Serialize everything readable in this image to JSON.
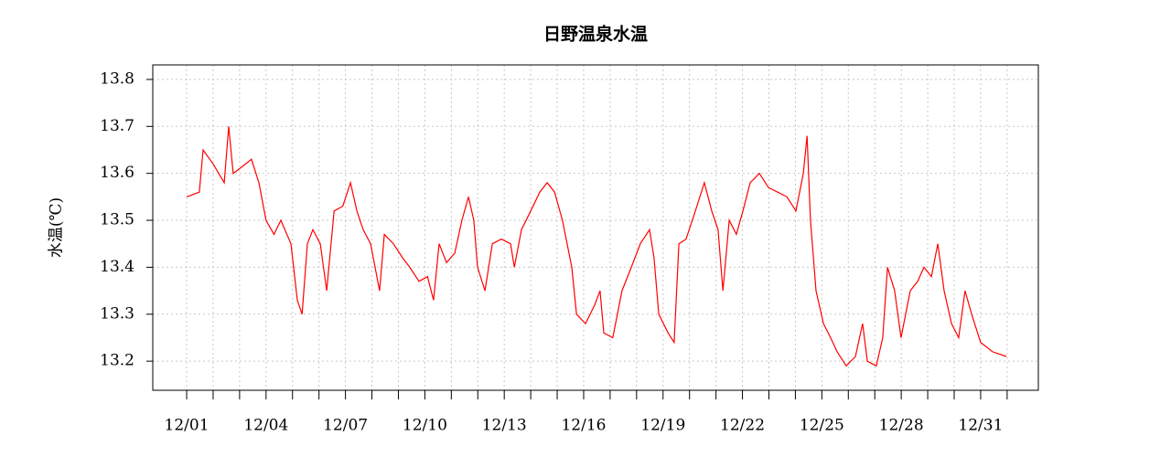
{
  "chart_data": {
    "type": "line",
    "title": "日野温泉水温",
    "ylabel": "水温(℃)",
    "color": "#ff0000",
    "grid": true,
    "x": [
      1.0,
      1.48,
      1.62,
      2.0,
      2.42,
      2.59,
      2.76,
      3.0,
      3.45,
      3.73,
      4.0,
      4.3,
      4.56,
      4.94,
      5.18,
      5.36,
      5.56,
      5.77,
      6.05,
      6.29,
      6.57,
      6.9,
      7.19,
      7.43,
      7.67,
      7.95,
      8.29,
      8.47,
      8.81,
      9.16,
      9.43,
      9.78,
      10.1,
      10.33,
      10.54,
      10.82,
      11.13,
      11.4,
      11.65,
      11.85,
      11.99,
      12.27,
      12.55,
      12.89,
      13.24,
      13.38,
      13.65,
      14.0,
      14.34,
      14.62,
      14.9,
      15.2,
      15.55,
      15.73,
      16.07,
      16.42,
      16.62,
      16.76,
      17.1,
      17.45,
      17.8,
      18.14,
      18.49,
      18.66,
      18.84,
      19.19,
      19.42,
      19.6,
      19.87,
      20.22,
      20.56,
      20.84,
      21.08,
      21.26,
      21.5,
      21.77,
      22.02,
      22.29,
      22.64,
      22.98,
      23.33,
      23.68,
      24.02,
      24.3,
      24.44,
      24.57,
      24.78,
      25.06,
      25.33,
      25.58,
      25.92,
      26.27,
      26.54,
      26.72,
      27.06,
      27.3,
      27.48,
      27.75,
      27.99,
      28.34,
      28.62,
      28.86,
      29.14,
      29.38,
      29.62,
      29.9,
      30.17,
      30.41,
      30.66,
      31.0,
      31.45,
      31.97
    ],
    "values": [
      13.55,
      13.56,
      13.65,
      13.62,
      13.58,
      13.7,
      13.6,
      13.61,
      13.63,
      13.58,
      13.5,
      13.47,
      13.5,
      13.45,
      13.33,
      13.3,
      13.45,
      13.48,
      13.45,
      13.35,
      13.52,
      13.53,
      13.58,
      13.52,
      13.48,
      13.45,
      13.35,
      13.47,
      13.45,
      13.42,
      13.4,
      13.37,
      13.38,
      13.33,
      13.45,
      13.41,
      13.43,
      13.5,
      13.55,
      13.5,
      13.4,
      13.35,
      13.45,
      13.46,
      13.45,
      13.4,
      13.48,
      13.52,
      13.56,
      13.58,
      13.56,
      13.5,
      13.4,
      13.3,
      13.28,
      13.32,
      13.35,
      13.26,
      13.25,
      13.35,
      13.4,
      13.45,
      13.48,
      13.42,
      13.3,
      13.26,
      13.24,
      13.45,
      13.46,
      13.52,
      13.58,
      13.52,
      13.48,
      13.35,
      13.5,
      13.47,
      13.52,
      13.58,
      13.6,
      13.57,
      13.56,
      13.55,
      13.52,
      13.6,
      13.68,
      13.5,
      13.35,
      13.28,
      13.25,
      13.22,
      13.19,
      13.21,
      13.28,
      13.2,
      13.19,
      13.25,
      13.4,
      13.35,
      13.25,
      13.35,
      13.37,
      13.4,
      13.38,
      13.45,
      13.35,
      13.28,
      13.25,
      13.35,
      13.3,
      13.24,
      13.22,
      13.21
    ],
    "xlim": [
      -0.28,
      33.18
    ],
    "xticks": [
      {
        "value": 1,
        "label": "12/01"
      },
      {
        "value": 4,
        "label": "12/04"
      },
      {
        "value": 7,
        "label": "12/07"
      },
      {
        "value": 10,
        "label": "12/10"
      },
      {
        "value": 13,
        "label": "12/13"
      },
      {
        "value": 16,
        "label": "12/16"
      },
      {
        "value": 19,
        "label": "12/19"
      },
      {
        "value": 22,
        "label": "12/22"
      },
      {
        "value": 25,
        "label": "12/25"
      },
      {
        "value": 28,
        "label": "12/28"
      },
      {
        "value": 31,
        "label": "12/31"
      }
    ],
    "xminorticks": [
      2,
      3,
      5,
      6,
      8,
      9,
      11,
      12,
      14,
      15,
      17,
      18,
      20,
      21,
      23,
      24,
      26,
      27,
      29,
      30,
      32
    ],
    "ylim": [
      13.138,
      13.831
    ],
    "yticks": [
      13.2,
      13.3,
      13.4,
      13.5,
      13.6,
      13.7,
      13.8
    ]
  }
}
